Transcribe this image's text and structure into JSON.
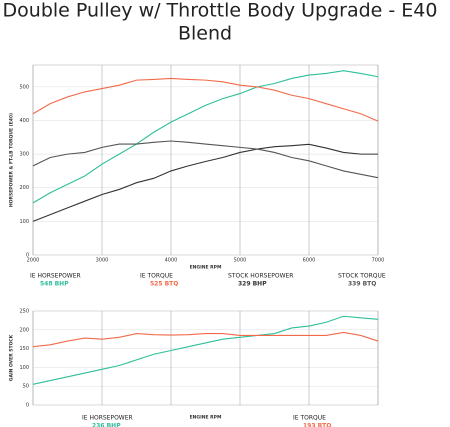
{
  "chart_data": [
    {
      "type": "line",
      "title": [
        "Double Pulley w/ Throttle Body Upgrade - E40",
        "Blend"
      ],
      "x_label": "ENGINE RPM",
      "y_label": "HORSEPOWER & FT-LB TORQUE (E40)",
      "x": [
        2000,
        2250,
        2500,
        2750,
        3000,
        3250,
        3500,
        3750,
        4000,
        4250,
        4500,
        4750,
        5000,
        5250,
        5500,
        5750,
        6000,
        6250,
        6500,
        6750,
        7000
      ],
      "xlim": [
        2000,
        7000
      ],
      "xticks": [
        2000,
        3000,
        4000,
        5000,
        6000,
        7000
      ],
      "ylim": [
        0,
        565
      ],
      "yticks": [
        0,
        100,
        200,
        300,
        400,
        500
      ],
      "grid": true,
      "series": [
        {
          "name": "IE HORSEPOWER",
          "label": "548 BHP",
          "color": "#2dbf9a",
          "values": [
            155,
            185,
            210,
            235,
            270,
            300,
            330,
            365,
            395,
            420,
            445,
            465,
            480,
            500,
            510,
            525,
            535,
            540,
            548,
            540,
            530
          ]
        },
        {
          "name": "IE TORQUE",
          "label": "525 BTQ",
          "color": "#f26a4b",
          "values": [
            420,
            450,
            470,
            485,
            495,
            505,
            520,
            522,
            525,
            522,
            520,
            515,
            505,
            500,
            490,
            475,
            465,
            450,
            435,
            420,
            398
          ]
        },
        {
          "name": "STOCK HORSEPOWER",
          "label": "329 BHP",
          "color": "#333333",
          "values": [
            100,
            120,
            140,
            160,
            180,
            195,
            215,
            228,
            250,
            265,
            278,
            290,
            305,
            315,
            322,
            325,
            329,
            318,
            305,
            300,
            300
          ]
        },
        {
          "name": "STOCK TORQUE",
          "label": "339 BTQ",
          "color": "#555555",
          "values": [
            265,
            290,
            300,
            305,
            320,
            330,
            330,
            335,
            339,
            335,
            330,
            325,
            320,
            315,
            305,
            290,
            280,
            265,
            250,
            240,
            230
          ]
        }
      ]
    },
    {
      "type": "line",
      "x_label": "ENGINE RPM",
      "y_label": "GAIN OVER STOCK",
      "x": [
        2000,
        2250,
        2500,
        2750,
        3000,
        3250,
        3500,
        3750,
        4000,
        4250,
        4500,
        4750,
        5000,
        5250,
        5500,
        5750,
        6000,
        6250,
        6500,
        6750,
        7000
      ],
      "xlim": [
        2000,
        7000
      ],
      "ylim": [
        0,
        250
      ],
      "yticks": [
        0,
        50,
        100,
        150,
        200,
        250
      ],
      "grid": true,
      "series": [
        {
          "name": "IE HORSEPOWER",
          "label": "236 BHP",
          "color": "#2dbf9a",
          "values": [
            55,
            65,
            75,
            85,
            95,
            105,
            120,
            135,
            145,
            155,
            165,
            175,
            180,
            185,
            190,
            205,
            210,
            220,
            236,
            232,
            228
          ]
        },
        {
          "name": "IE TORQUE",
          "label": "193 BTQ",
          "color": "#f26a4b",
          "values": [
            155,
            160,
            170,
            178,
            175,
            180,
            190,
            187,
            186,
            187,
            190,
            190,
            185,
            185,
            185,
            185,
            185,
            185,
            193,
            185,
            170
          ]
        }
      ]
    }
  ]
}
